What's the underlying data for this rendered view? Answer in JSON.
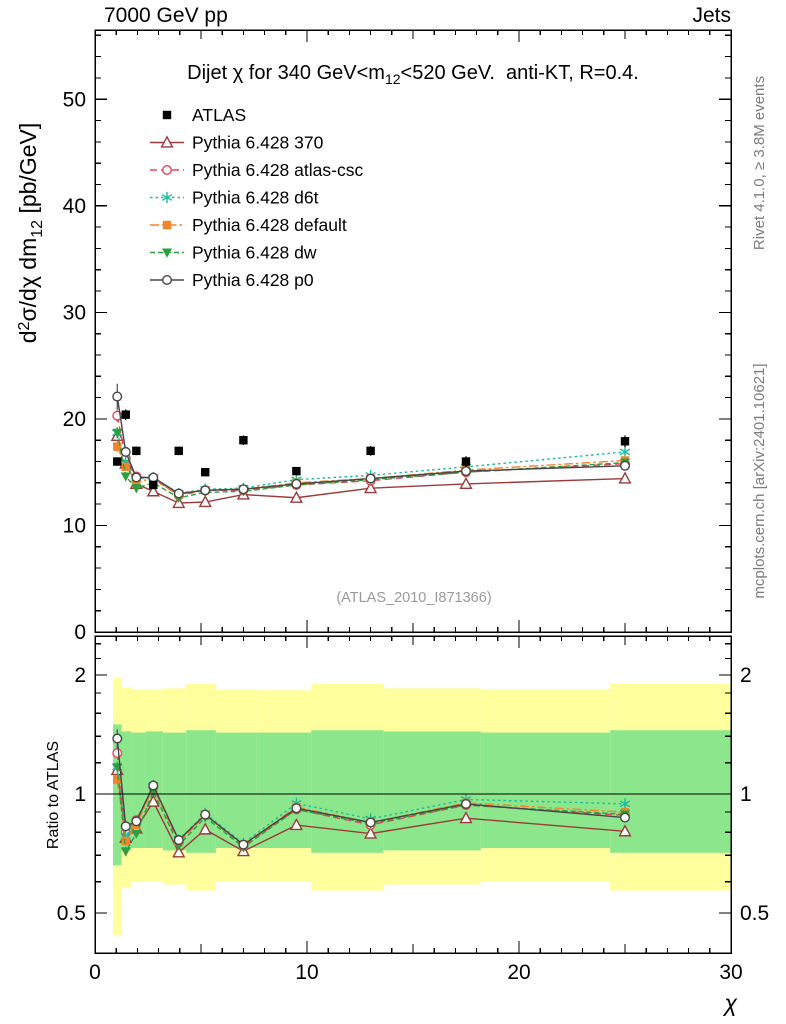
{
  "header": {
    "left": "7000 GeV pp",
    "right": "Jets"
  },
  "side_notes": {
    "top_right": "Rivet 4.1.0, ≥ 3.8M events",
    "bottom_right": "mcplots.cern.ch [arXiv:2401.10621]"
  },
  "watermark": "(ATLAS_2010_I871366)",
  "title_parts": {
    "main": "Dijet χ for 340 GeV<m",
    "sub": "12",
    "rest": "<520 GeV.  anti-KT, R=0.4."
  },
  "axes": {
    "top_ylabel": {
      "d": "d",
      "sup": "2",
      "mid": "σ/dχ dm",
      "sub": "12",
      "rest": " [pb/GeV]"
    },
    "ratio_ylabel": "Ratio to ATLAS",
    "xlabel": "χ"
  },
  "chart_data": {
    "type": "line",
    "title": "Dijet χ for 340 GeV<m12<520 GeV.  anti-KT, R=0.4.",
    "xlabel": "χ",
    "ylabel_top": "d²σ/dχ dm12 [pb/GeV]",
    "ylabel_bottom": "Ratio to ATLAS",
    "legend_position": "top-left-inside",
    "x": [
      1.05,
      1.45,
      1.95,
      2.75,
      3.95,
      5.2,
      7.0,
      9.5,
      13.0,
      17.5,
      25.0
    ],
    "x_axis": {
      "range": [
        0,
        30
      ],
      "ticks": [
        0,
        10,
        20,
        30
      ]
    },
    "top_axis": {
      "ymax": 56.5,
      "yticks": [
        0,
        10,
        20,
        30,
        40,
        50
      ]
    },
    "ratio_axis": {
      "scale": "log",
      "ticks": [
        0.5,
        1,
        2
      ],
      "minor_ticks": [
        0.6,
        0.7,
        0.8,
        0.9,
        1.2,
        1.4,
        1.6,
        1.8,
        2.2,
        2.4
      ],
      "range": [
        0.4,
        2.5
      ]
    },
    "reference": {
      "name": "ATLAS",
      "marker": "square-filled",
      "color": "#000000",
      "values": [
        16.0,
        20.4,
        17.0,
        13.8,
        17.0,
        15.0,
        18.0,
        15.1,
        17.0,
        16.0,
        17.9
      ],
      "yerr": [
        0.4,
        0.5,
        0.4,
        0.35,
        0.4,
        0.35,
        0.45,
        0.35,
        0.45,
        0.5,
        0.55
      ]
    },
    "series": [
      {
        "name": "Pythia 6.428 370",
        "color": "#9a3a3a",
        "marker": "triangle-up-open",
        "line": "solid",
        "values": [
          18.4,
          15.8,
          13.9,
          13.2,
          12.1,
          12.2,
          12.9,
          12.6,
          13.5,
          13.9,
          14.4
        ],
        "yerr": [
          0.5,
          0.4,
          0.3,
          0.3,
          0.25,
          0.25,
          0.25,
          0.2,
          0.25,
          0.25,
          0.3
        ]
      },
      {
        "name": "Pythia 6.428 atlas-csc",
        "color": "#e8435a",
        "marker": "circle-open",
        "line": "dash",
        "values": [
          20.3,
          16.3,
          14.6,
          14.4,
          12.8,
          13.3,
          13.3,
          13.8,
          14.2,
          15.0,
          15.8
        ],
        "yerr": [
          0.6,
          0.45,
          0.35,
          0.3,
          0.25,
          0.25,
          0.25,
          0.2,
          0.25,
          0.25,
          0.3
        ]
      },
      {
        "name": "Pythia 6.428 d6t",
        "color": "#18bc9c",
        "marker": "asterisk",
        "line": "dot",
        "values": [
          18.7,
          16.0,
          14.4,
          14.5,
          13.0,
          13.4,
          13.5,
          14.3,
          14.7,
          15.5,
          16.9
        ],
        "yerr": [
          0.5,
          0.4,
          0.3,
          0.3,
          0.25,
          0.25,
          0.25,
          0.2,
          0.25,
          0.25,
          0.3
        ]
      },
      {
        "name": "Pythia 6.428 default",
        "color": "#f2842c",
        "marker": "square-filled",
        "line": "dashdot",
        "values": [
          17.4,
          15.5,
          14.2,
          14.3,
          12.9,
          13.3,
          13.4,
          14.0,
          14.4,
          15.2,
          16.1
        ],
        "yerr": [
          0.5,
          0.4,
          0.3,
          0.3,
          0.25,
          0.25,
          0.25,
          0.2,
          0.25,
          0.25,
          0.3
        ]
      },
      {
        "name": "Pythia 6.428 dw",
        "color": "#2e9e3e",
        "marker": "triangle-down-filled",
        "line": "shortdash",
        "values": [
          18.7,
          14.6,
          13.5,
          14.0,
          12.6,
          13.1,
          13.2,
          13.8,
          14.3,
          15.0,
          15.9
        ],
        "yerr": [
          0.5,
          0.4,
          0.3,
          0.3,
          0.25,
          0.25,
          0.25,
          0.2,
          0.25,
          0.25,
          0.3
        ]
      },
      {
        "name": "Pythia 6.428 p0",
        "color": "#464646",
        "marker": "circle-open",
        "line": "solid",
        "values": [
          22.1,
          16.9,
          14.5,
          14.5,
          13.0,
          13.3,
          13.4,
          13.9,
          14.4,
          15.1,
          15.6
        ],
        "yerr": [
          1.2,
          0.5,
          0.35,
          0.3,
          0.25,
          0.25,
          0.25,
          0.2,
          0.25,
          0.25,
          0.3
        ]
      }
    ],
    "ratio": {
      "definition": "series / reference (ATLAS)",
      "bands": {
        "bin_edges": [
          0.85,
          1.25,
          1.7,
          2.4,
          3.2,
          4.3,
          5.7,
          7.6,
          10.2,
          13.6,
          18.2,
          24.3,
          30
        ],
        "outer": {
          "color": "#ffff9e",
          "lo": [
            0.44,
            0.58,
            0.6,
            0.6,
            0.59,
            0.57,
            0.6,
            0.6,
            0.57,
            0.59,
            0.6,
            0.57
          ],
          "hi": [
            1.97,
            1.86,
            1.84,
            1.84,
            1.85,
            1.9,
            1.84,
            1.83,
            1.9,
            1.85,
            1.84,
            1.9
          ]
        },
        "inner": {
          "color": "#8ce78c",
          "lo": [
            0.66,
            0.72,
            0.73,
            0.73,
            0.72,
            0.71,
            0.73,
            0.73,
            0.71,
            0.72,
            0.73,
            0.71
          ],
          "hi": [
            1.5,
            1.44,
            1.43,
            1.44,
            1.43,
            1.45,
            1.43,
            1.43,
            1.45,
            1.44,
            1.43,
            1.45
          ]
        }
      }
    }
  }
}
